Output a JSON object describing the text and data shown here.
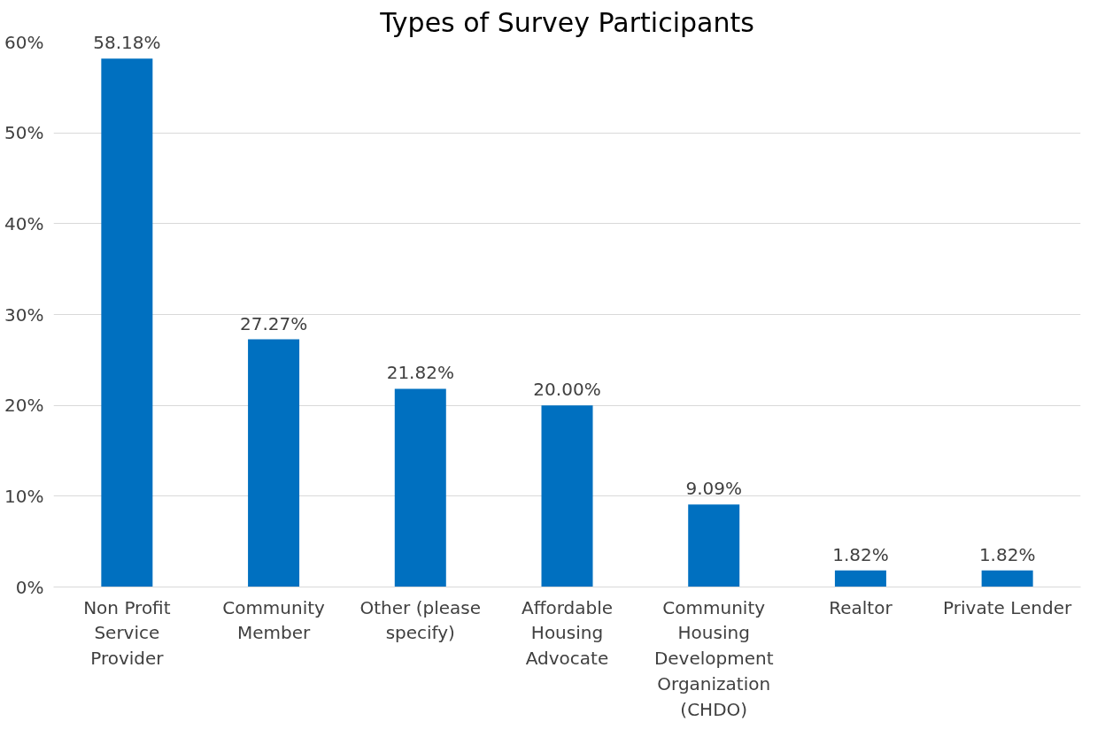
{
  "chart_data": {
    "type": "bar",
    "title": "Types of Survey Participants",
    "categories": [
      "Non Profit Service Provider",
      "Community Member",
      "Other (please specify)",
      "Affordable Housing Advocate",
      "Community Housing Development Organization (CHDO)",
      "Realtor",
      "Private Lender"
    ],
    "values": [
      58.18,
      27.27,
      21.82,
      20.0,
      9.09,
      1.82,
      1.82
    ],
    "value_labels": [
      "58.18%",
      "27.27%",
      "21.82%",
      "20.00%",
      "9.09%",
      "1.82%",
      "1.82%"
    ],
    "color": "#0070c0",
    "ylim": [
      0,
      60
    ],
    "yticks": [
      {
        "value": 0,
        "label": "0%"
      },
      {
        "value": 10,
        "label": "10%"
      },
      {
        "value": 20,
        "label": "20%"
      },
      {
        "value": 30,
        "label": "30%"
      },
      {
        "value": 40,
        "label": "40%"
      },
      {
        "value": 50,
        "label": "50%"
      },
      {
        "value": 60,
        "label": "60%"
      }
    ],
    "grid": "y"
  }
}
